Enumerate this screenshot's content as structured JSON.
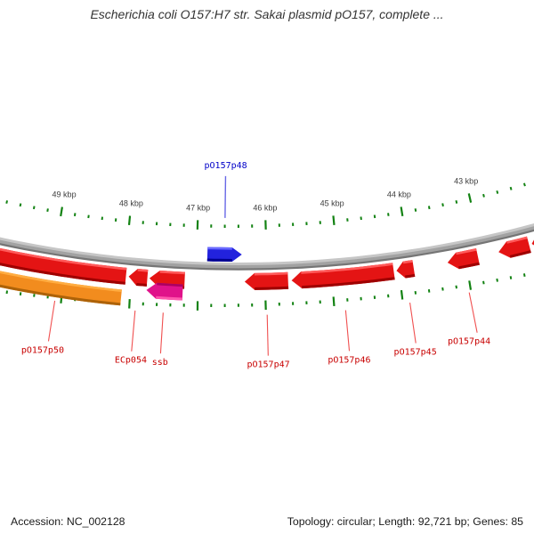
{
  "title": "Escherichia coli O157:H7 str. Sakai plasmid pO157, complete ...",
  "status_bar": {
    "accession": "Accession: NC_002128",
    "info": "Topology: circular; Length: 92,721 bp; Genes: 85"
  },
  "map": {
    "backbone_color": "#a6a6a6",
    "ruler": {
      "unit": "kbp",
      "tick_color": "#128212",
      "label_color": "#3c3c3c",
      "minor_step_kbp": 0.2,
      "visible_range_kbp": [
        42.2,
        49.8
      ],
      "major_ticks": [
        {
          "kbp": 49,
          "label": "49 kbp"
        },
        {
          "kbp": 48,
          "label": "48 kbp"
        },
        {
          "kbp": 47,
          "label": "47 kbp"
        },
        {
          "kbp": 46,
          "label": "46 kbp"
        },
        {
          "kbp": 45,
          "label": "45 kbp"
        },
        {
          "kbp": 44,
          "label": "44 kbp"
        },
        {
          "kbp": 43,
          "label": "43 kbp"
        }
      ]
    },
    "palette": {
      "red": {
        "body": "#e41414",
        "top": "#ff5a5a",
        "bottom": "#9e0000"
      },
      "orange": {
        "body": "#f28c1e",
        "top": "#ffad42",
        "bottom": "#ad6208"
      },
      "magenta": {
        "body": "#e0128a",
        "top": "#ac0060",
        "bottom": "#ff57ad"
      },
      "blue": {
        "body": "#2222dd",
        "top": "#6a6aff",
        "bottom": "#000090"
      }
    },
    "label_colors": {
      "reverse": "#c80000",
      "forward": "#0000c8"
    },
    "callout_colors": {
      "reverse": "#f05050",
      "forward": "#6868e6"
    },
    "genes": [
      {
        "name": "",
        "start_kbp": 48.03,
        "end_kbp": 50.2,
        "strand": "reverse",
        "color": "red",
        "track": "main",
        "head": "none",
        "labeled": false
      },
      {
        "name": "pO157p50",
        "start_kbp": 48.07,
        "end_kbp": 50.2,
        "strand": "reverse",
        "color": "orange",
        "track": "outer",
        "head": "none",
        "labeled": true
      },
      {
        "name": "ECp054",
        "start_kbp": 47.72,
        "end_kbp": 47.99,
        "strand": "reverse",
        "color": "red",
        "track": "main",
        "head": "left",
        "labeled": true
      },
      {
        "name": "",
        "start_kbp": 47.18,
        "end_kbp": 47.69,
        "strand": "reverse",
        "color": "red",
        "track": "main",
        "head": "left",
        "labeled": false
      },
      {
        "name": "ssb",
        "start_kbp": 47.2,
        "end_kbp": 47.72,
        "strand": "reverse",
        "color": "magenta",
        "track": "outer2",
        "head": "left",
        "labeled": true
      },
      {
        "name": "pO157p47",
        "start_kbp": 45.68,
        "end_kbp": 46.31,
        "strand": "reverse",
        "color": "red",
        "track": "main",
        "head": "left",
        "labeled": true
      },
      {
        "name": "pO157p46",
        "start_kbp": 44.15,
        "end_kbp": 45.63,
        "strand": "reverse",
        "color": "red",
        "track": "main",
        "head": "left",
        "labeled": true
      },
      {
        "name": "pO157p45",
        "start_kbp": 43.86,
        "end_kbp": 44.11,
        "strand": "reverse",
        "color": "red",
        "track": "main",
        "head": "left",
        "labeled": true
      },
      {
        "name": "pO157p44",
        "start_kbp": 42.93,
        "end_kbp": 43.37,
        "strand": "reverse",
        "color": "red",
        "track": "main",
        "head": "left",
        "labeled": true
      },
      {
        "name": "",
        "start_kbp": 42.19,
        "end_kbp": 42.63,
        "strand": "reverse",
        "color": "red",
        "track": "main",
        "head": "left",
        "labeled": false
      },
      {
        "name": "",
        "start_kbp": 41.9,
        "end_kbp": 42.15,
        "strand": "reverse",
        "color": "red",
        "track": "main",
        "head": "left",
        "labeled": false
      },
      {
        "name": "pO157p48",
        "start_kbp": 46.35,
        "end_kbp": 46.86,
        "strand": "forward",
        "color": "blue",
        "track": "inner",
        "head": "right",
        "labeled": true
      }
    ]
  }
}
